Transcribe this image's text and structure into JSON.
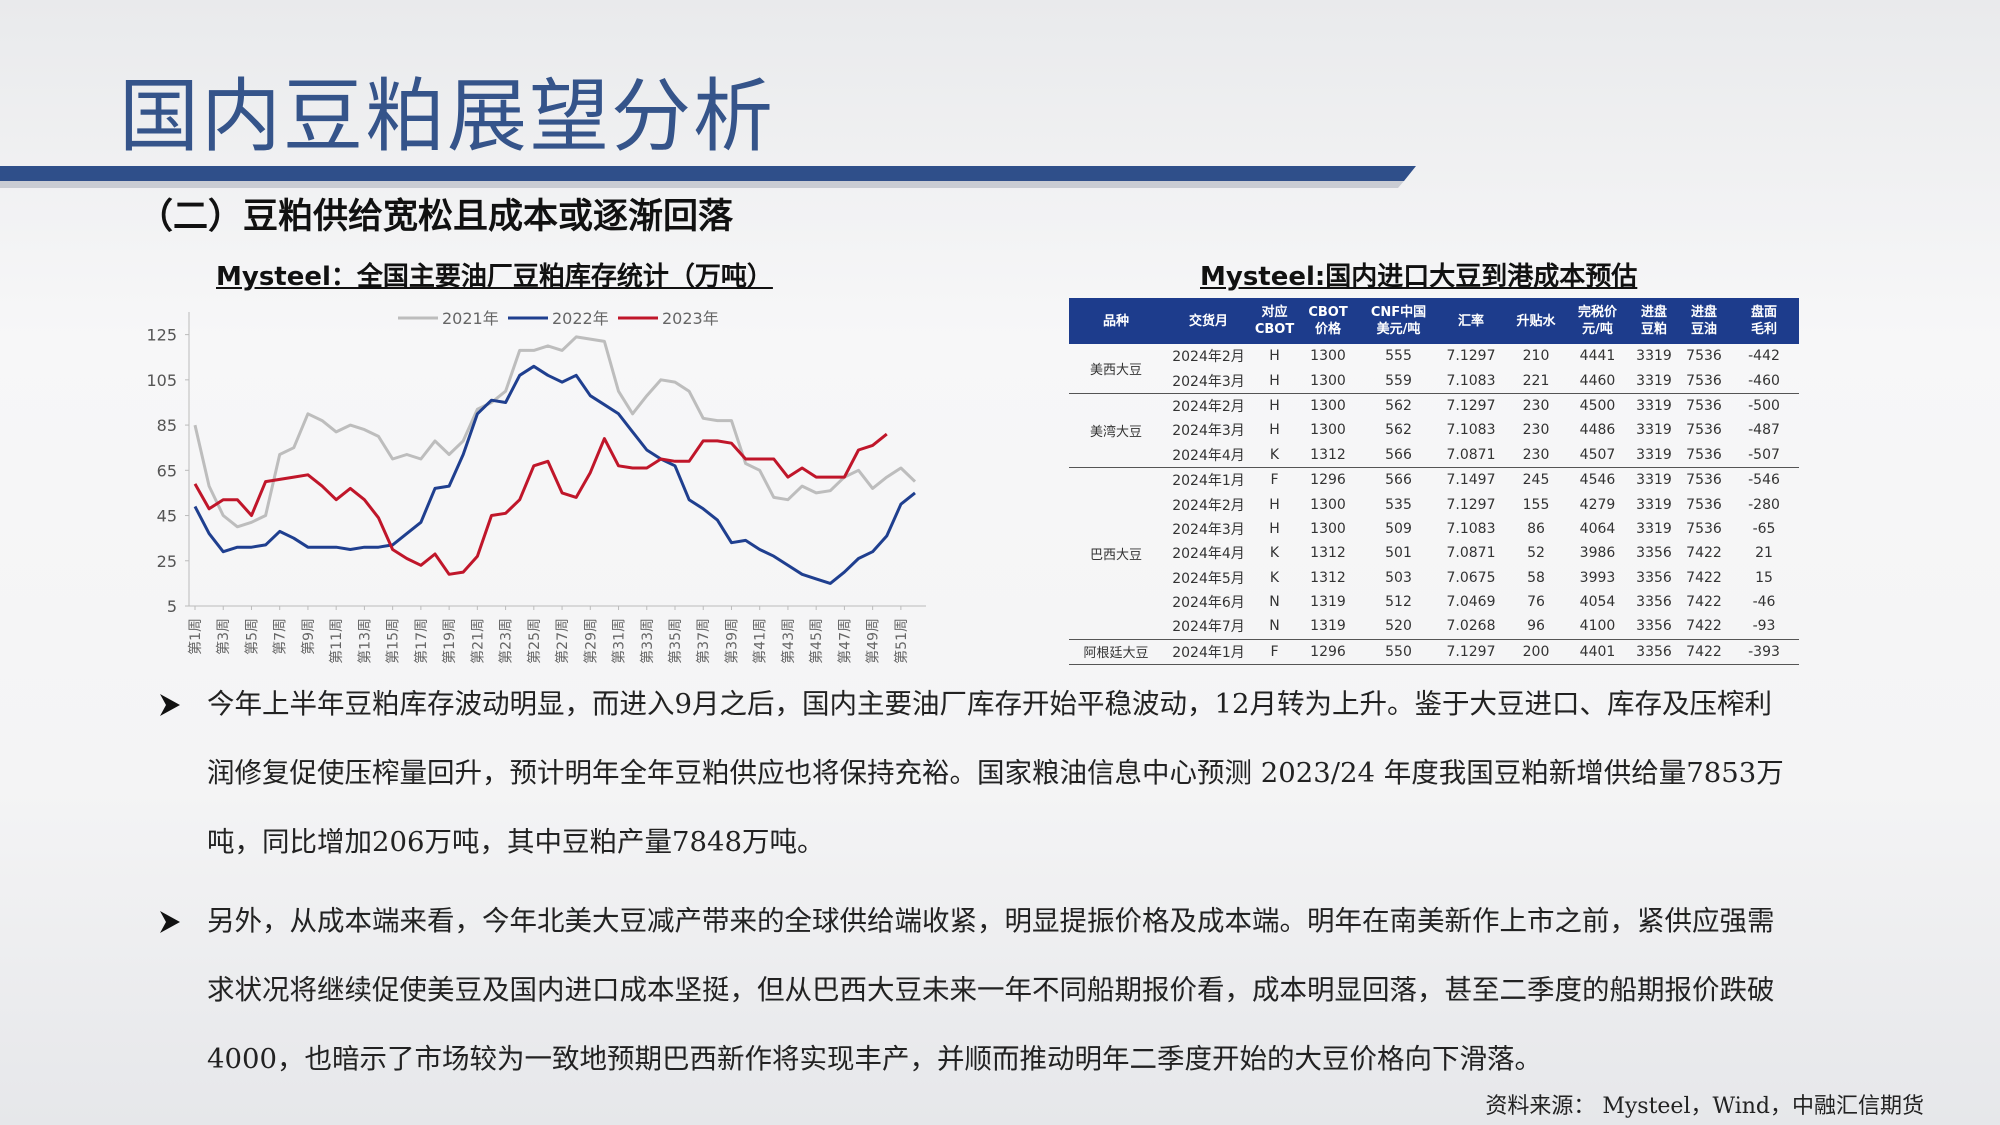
{
  "title": "国内豆粕展望分析",
  "subtitle": "（二）豆粕供给宽松且成本或逐渐回落",
  "chart_data": {
    "type": "line",
    "title": "Mysteel：全国主要油厂豆粕库存统计（万吨）",
    "categories": [
      "第1周",
      null,
      "第3周",
      null,
      "第5周",
      null,
      "第7周",
      null,
      "第9周",
      null,
      "第11周",
      null,
      "第13周",
      null,
      "第15周",
      null,
      "第17周",
      null,
      "第19周",
      null,
      "第21周",
      null,
      "第23周",
      null,
      "第25周",
      null,
      "第27周",
      null,
      "第29周",
      null,
      "第31周",
      null,
      "第33周",
      null,
      "第35周",
      null,
      "第37周",
      null,
      "第39周",
      null,
      "第41周",
      null,
      "第43周",
      null,
      "第45周",
      null,
      "第47周",
      null,
      "第49周",
      null,
      "第51周",
      null
    ],
    "series": [
      {
        "name": "2021年",
        "color": "#bdbdbd",
        "values": [
          85,
          58,
          45,
          40,
          42,
          45,
          72,
          75,
          90,
          87,
          82,
          85,
          83,
          80,
          70,
          72,
          70,
          78,
          72,
          78,
          92,
          95,
          100,
          118,
          118,
          120,
          118,
          124,
          123,
          122,
          100,
          90,
          98,
          105,
          104,
          100,
          88,
          87,
          87,
          68,
          65,
          53,
          52,
          58,
          55,
          56,
          62,
          65,
          57,
          62,
          66,
          60
        ]
      },
      {
        "name": "2022年",
        "color": "#1f3f8f",
        "values": [
          49,
          37,
          29,
          31,
          31,
          32,
          38,
          35,
          31,
          31,
          31,
          30,
          31,
          31,
          32,
          37,
          42,
          57,
          58,
          72,
          90,
          96,
          95,
          107,
          111,
          107,
          104,
          107,
          98,
          94,
          90,
          82,
          74,
          70,
          67,
          52,
          48,
          43,
          33,
          34,
          30,
          27,
          23,
          19,
          17,
          15,
          20,
          26,
          29,
          36,
          50,
          55
        ]
      },
      {
        "name": "2023年",
        "color": "#c0162a",
        "values": [
          59,
          48,
          52,
          52,
          45,
          60,
          61,
          62,
          63,
          58,
          52,
          57,
          52,
          44,
          30,
          26,
          23,
          28,
          19,
          20,
          27,
          45,
          46,
          52,
          67,
          69,
          55,
          53,
          64,
          79,
          67,
          66,
          66,
          70,
          69,
          69,
          78,
          78,
          77,
          70,
          70,
          70,
          62,
          66,
          62,
          62,
          62,
          74,
          76,
          81,
          null,
          null
        ]
      }
    ],
    "ylim": [
      5,
      135
    ],
    "yticks": [
      5,
      25,
      45,
      65,
      85,
      105,
      125
    ],
    "grid": false,
    "legend": "top"
  },
  "table": {
    "title": "Mysteel:国内进口大豆到港成本预估",
    "headers": [
      [
        "品种"
      ],
      [
        "交货月"
      ],
      [
        "对应",
        "CBOT"
      ],
      [
        "CBOT",
        "价格"
      ],
      [
        "CNF中国",
        "美元/吨"
      ],
      [
        "汇率"
      ],
      [
        "升贴水"
      ],
      [
        "完税价",
        "元/吨"
      ],
      [
        "进盘",
        "豆粕"
      ],
      [
        "进盘",
        "豆油"
      ],
      [
        "盘面",
        "毛利"
      ]
    ],
    "groups": [
      {
        "name": "美西大豆",
        "rows": [
          [
            "2024年2月",
            "H",
            "1300",
            "555",
            "7.1297",
            "210",
            "4441",
            "3319",
            "7536",
            "-442"
          ],
          [
            "2024年3月",
            "H",
            "1300",
            "559",
            "7.1083",
            "221",
            "4460",
            "3319",
            "7536",
            "-460"
          ]
        ]
      },
      {
        "name": "美湾大豆",
        "rows": [
          [
            "2024年2月",
            "H",
            "1300",
            "562",
            "7.1297",
            "230",
            "4500",
            "3319",
            "7536",
            "-500"
          ],
          [
            "2024年3月",
            "H",
            "1300",
            "562",
            "7.1083",
            "230",
            "4486",
            "3319",
            "7536",
            "-487"
          ],
          [
            "2024年4月",
            "K",
            "1312",
            "566",
            "7.0871",
            "230",
            "4507",
            "3319",
            "7536",
            "-507"
          ]
        ]
      },
      {
        "name": "巴西大豆",
        "rows": [
          [
            "2024年1月",
            "F",
            "1296",
            "566",
            "7.1497",
            "245",
            "4546",
            "3319",
            "7536",
            "-546"
          ],
          [
            "2024年2月",
            "H",
            "1300",
            "535",
            "7.1297",
            "155",
            "4279",
            "3319",
            "7536",
            "-280"
          ],
          [
            "2024年3月",
            "H",
            "1300",
            "509",
            "7.1083",
            "86",
            "4064",
            "3319",
            "7536",
            "-65"
          ],
          [
            "2024年4月",
            "K",
            "1312",
            "501",
            "7.0871",
            "52",
            "3986",
            "3356",
            "7422",
            "21"
          ],
          [
            "2024年5月",
            "K",
            "1312",
            "503",
            "7.0675",
            "58",
            "3993",
            "3356",
            "7422",
            "15"
          ],
          [
            "2024年6月",
            "N",
            "1319",
            "512",
            "7.0469",
            "76",
            "4054",
            "3356",
            "7422",
            "-46"
          ],
          [
            "2024年7月",
            "N",
            "1319",
            "520",
            "7.0268",
            "96",
            "4100",
            "3356",
            "7422",
            "-93"
          ]
        ]
      },
      {
        "name": "阿根廷大豆",
        "rows": [
          [
            "2024年1月",
            "F",
            "1296",
            "550",
            "7.1297",
            "200",
            "4401",
            "3356",
            "7422",
            "-393"
          ]
        ]
      }
    ]
  },
  "bullets": [
    "今年上半年豆粕库存波动明显，而进入9月之后，国内主要油厂库存开始平稳波动，12月转为上升。鉴于大豆进口、库存及压榨利润修复促使压榨量回升，预计明年全年豆粕供应也将保持充裕。国家粮油信息中心预测 2023/24 年度我国豆粕新增供给量7853万吨，同比增加206万吨，其中豆粕产量7848万吨。",
    "另外，从成本端来看，今年北美大豆减产带来的全球供给端收紧，明显提振价格及成本端。明年在南美新作上市之前，紧供应强需求状况将继续促使美豆及国内进口成本坚挺，但从巴西大豆未来一年不同船期报价看，成本明显回落，甚至二季度的船期报价跌破4000，也暗示了市场较为一致地预期巴西新作将实现丰产，并顺而推动明年二季度开始的大豆价格向下滑落。"
  ],
  "source": "资料来源： Mysteel，Wind，中融汇信期货"
}
